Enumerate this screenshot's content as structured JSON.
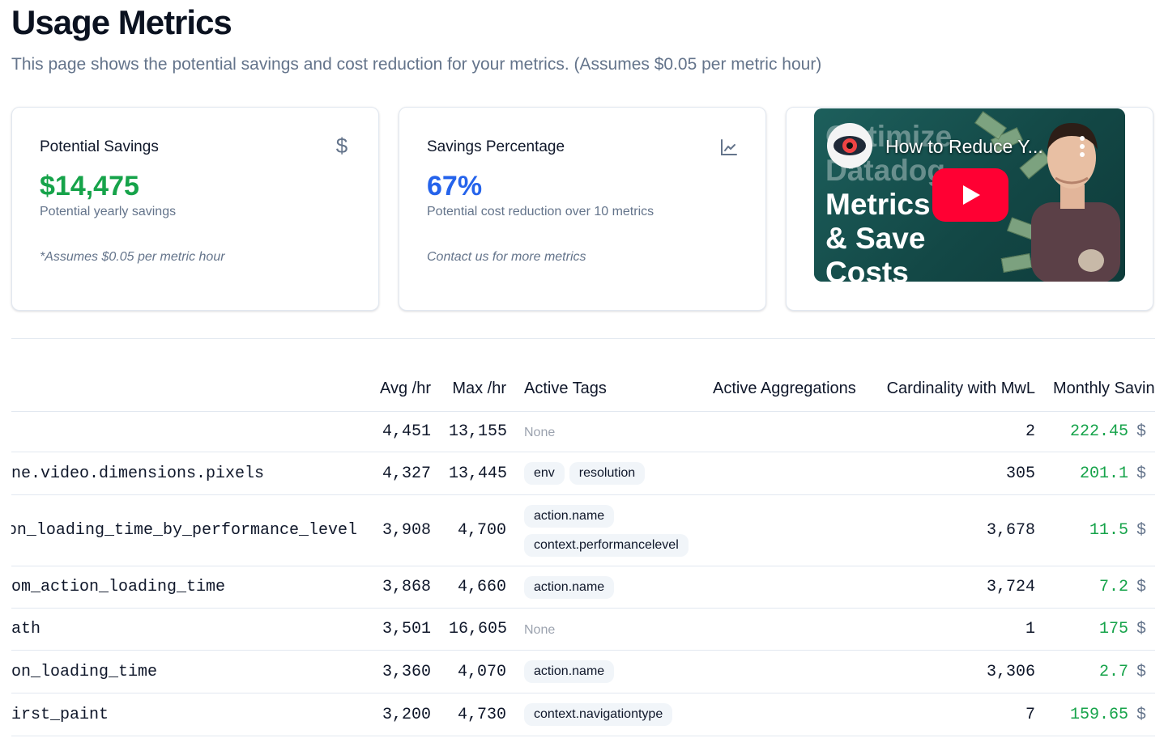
{
  "header": {
    "title": "Usage Metrics",
    "subtitle": "This page shows the potential savings and cost reduction for your metrics. (Assumes $0.05 per metric hour)"
  },
  "cards": {
    "savings": {
      "title": "Potential Savings",
      "icon": "dollar-icon",
      "value": "$14,475",
      "value_color": "#16a34a",
      "description": "Potential yearly savings",
      "note": "*Assumes $0.05 per metric hour"
    },
    "percentage": {
      "title": "Savings Percentage",
      "icon": "line-chart-icon",
      "value": "67%",
      "value_color": "#2563eb",
      "description": "Potential cost reduction over 10 metrics",
      "note": "Contact us for more metrics"
    },
    "video": {
      "title": "How to Reduce Y...",
      "thumbnail_text": [
        "Optimize",
        "Datadog",
        "Metrics",
        "& Save",
        "Costs"
      ]
    }
  },
  "table": {
    "columns": [
      "",
      "Avg /hr",
      "Max /hr",
      "Active Tags",
      "Active Aggregations",
      "Cardinality with MwL",
      "Monthly Savings"
    ],
    "none_label": "None",
    "currency_symbol": "$",
    "rows": [
      {
        "name": "",
        "avg": "4,451",
        "max": "13,155",
        "tags": [],
        "aggregations": "",
        "cardinality": "2",
        "savings": "222.45"
      },
      {
        "name": "ne.video.dimensions.pixels",
        "avg": "4,327",
        "max": "13,445",
        "tags": [
          "env",
          "resolution"
        ],
        "aggregations": "",
        "cardinality": "305",
        "savings": "201.1"
      },
      {
        "name": "on_loading_time_by_performance_level",
        "avg": "3,908",
        "max": "4,700",
        "tags": [
          "action.name",
          "context.performancelevel"
        ],
        "aggregations": "",
        "cardinality": "3,678",
        "savings": "11.5"
      },
      {
        "name": "om_action_loading_time",
        "avg": "3,868",
        "max": "4,660",
        "tags": [
          "action.name"
        ],
        "aggregations": "",
        "cardinality": "3,724",
        "savings": "7.2"
      },
      {
        "name": "ath",
        "avg": "3,501",
        "max": "16,605",
        "tags": [],
        "aggregations": "",
        "cardinality": "1",
        "savings": "175"
      },
      {
        "name": "on_loading_time",
        "avg": "3,360",
        "max": "4,070",
        "tags": [
          "action.name"
        ],
        "aggregations": "",
        "cardinality": "3,306",
        "savings": "2.7"
      },
      {
        "name": "irst_paint",
        "avg": "3,200",
        "max": "4,730",
        "tags": [
          "context.navigationtype"
        ],
        "aggregations": "",
        "cardinality": "7",
        "savings": "159.65"
      }
    ]
  }
}
